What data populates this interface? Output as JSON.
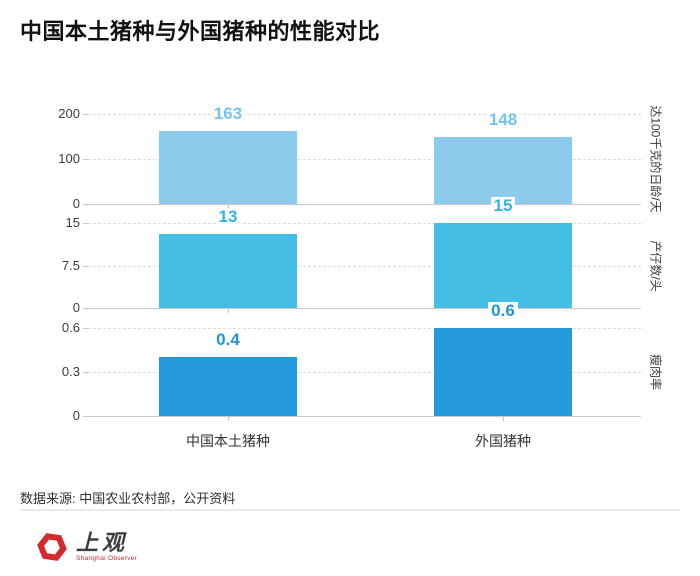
{
  "title": "中国本土猪种与外国猪种的性能对比",
  "source": "数据来源: 中国农业农村部，公开资料",
  "logo": {
    "name_cn": "上观",
    "name_en": "Shanghai Observer",
    "brand_red": "#D12B2E"
  },
  "chart_data": {
    "type": "bar",
    "title": "中国本土猪种与外国猪种的性能对比",
    "categories": [
      "中国本土猪种",
      "外国猪种"
    ],
    "grid": "horizontal-dashed",
    "legend": "none",
    "panels": [
      {
        "metric": "达100千克的日龄/天",
        "ylim": [
          0,
          200
        ],
        "ticks": [
          0,
          100,
          200
        ],
        "values": [
          163,
          148
        ],
        "bar_color": "#8CCBEC",
        "label_color": "#74C3EC"
      },
      {
        "metric": "产仔数/头",
        "ylim": [
          0,
          15
        ],
        "ticks": [
          0,
          7.5,
          15
        ],
        "values": [
          13,
          15
        ],
        "bar_color": "#45BEE5",
        "label_color": "#33B4E2"
      },
      {
        "metric": "瘦肉率",
        "ylim": [
          0,
          0.6
        ],
        "ticks": [
          0,
          0.3,
          0.6
        ],
        "values": [
          0.4,
          0.6
        ],
        "bar_color": "#2499DB",
        "label_color": "#1E96D6"
      }
    ]
  }
}
